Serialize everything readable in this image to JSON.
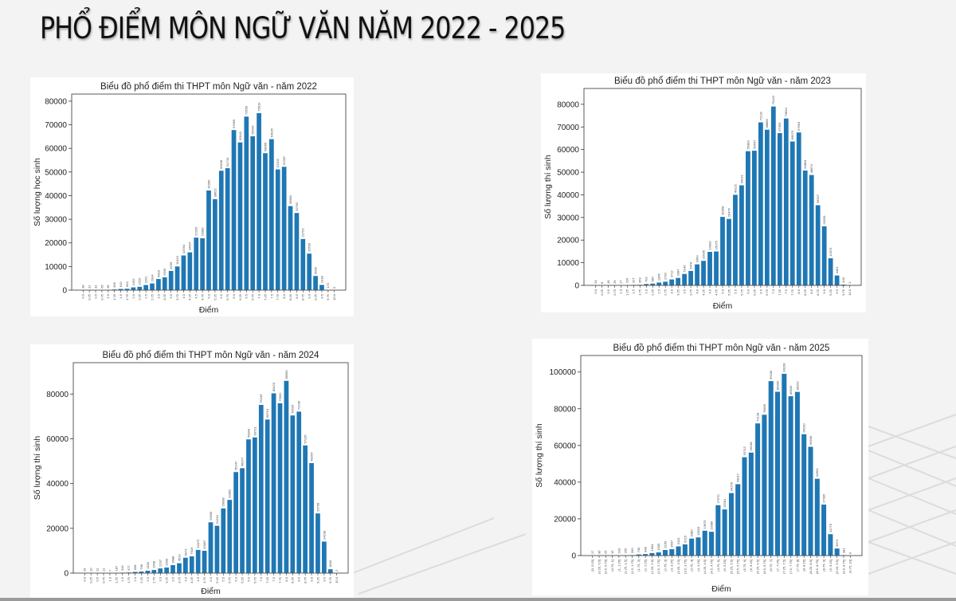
{
  "page": {
    "title": "PHỔ ĐIỂM MÔN NGỮ VĂN NĂM 2022 - 2025",
    "bar_color": "#1f77b4",
    "background": "#f3f3f3"
  },
  "chart_data": [
    {
      "type": "bar",
      "title": "Biểu đồ phổ điểm thi THPT môn Ngữ văn - năm 2022",
      "xlabel": "Điểm",
      "ylabel": "Số lượng học sinh",
      "ylim": [
        0,
        83000
      ],
      "yticks": [
        0,
        10000,
        20000,
        30000,
        40000,
        50000,
        60000,
        70000,
        80000
      ],
      "grid": false,
      "categories": [
        "0.0",
        "0.25",
        "0.5",
        "0.75",
        "1.0",
        "1.25",
        "1.5",
        "1.75",
        "2.0",
        "2.25",
        "2.5",
        "2.75",
        "3.0",
        "3.25",
        "3.5",
        "3.75",
        "4.0",
        "4.25",
        "4.5",
        "4.75",
        "5.0",
        "5.25",
        "5.5",
        "5.75",
        "6.0",
        "6.25",
        "6.5",
        "6.75",
        "7.0",
        "7.25",
        "7.5",
        "7.75",
        "8.0",
        "8.25",
        "8.5",
        "8.75",
        "9.0",
        "9.25",
        "9.5",
        "9.75",
        "10.0"
      ],
      "values": [
        38,
        12,
        31,
        65,
        28,
        395,
        610,
        694,
        1262,
        1520,
        2261,
        2934,
        4810,
        5539,
        8239,
        10119,
        14784,
        16097,
        22329,
        22089,
        42285,
        38622,
        50638,
        51713,
        67855,
        62643,
        73559,
        65243,
        75019,
        58066,
        64026,
        51202,
        52307,
        35680,
        32762,
        21753,
        15556,
        6095,
        2318,
        172,
        5
      ]
    },
    {
      "type": "bar",
      "title": "Biểu đồ phổ điểm thi THPT môn Ngữ văn - năm 2023",
      "xlabel": "Điểm",
      "ylabel": "Số lượng thí sinh",
      "ylim": [
        0,
        87000
      ],
      "yticks": [
        0,
        10000,
        20000,
        30000,
        40000,
        50000,
        60000,
        70000,
        80000
      ],
      "grid": false,
      "categories": [
        "0.0",
        "0.25",
        "0.5",
        "0.75",
        "1.0",
        "1.25",
        "1.5",
        "1.75",
        "2.0",
        "2.25",
        "2.5",
        "2.75",
        "3.0",
        "3.25",
        "3.5",
        "3.75",
        "4.0",
        "4.25",
        "4.5",
        "4.75",
        "5.0",
        "5.25",
        "5.5",
        "5.75",
        "6.0",
        "6.25",
        "6.5",
        "6.75",
        "7.0",
        "7.25",
        "7.5",
        "7.75",
        "8.0",
        "8.25",
        "8.5",
        "8.75",
        "9.0",
        "9.25",
        "9.5",
        "9.75",
        "10.0"
      ],
      "values": [
        24,
        8,
        18,
        29,
        17,
        226,
        327,
        359,
        702,
        887,
        1366,
        1720,
        2712,
        3387,
        5143,
        6478,
        9390,
        10935,
        14903,
        15075,
        30358,
        29475,
        40122,
        44321,
        59383,
        59597,
        72132,
        68886,
        79143,
        67363,
        73834,
        63679,
        67664,
        50864,
        48874,
        35527,
        26209,
        12073,
        4461,
        443,
        1
      ]
    },
    {
      "type": "bar",
      "title": "Biểu đồ phổ điểm thi THPT môn Ngữ văn - năm 2024",
      "xlabel": "Điểm",
      "ylabel": "Số lượng thí sinh",
      "ylim": [
        0,
        94000
      ],
      "yticks": [
        0,
        20000,
        40000,
        60000,
        80000
      ],
      "grid": false,
      "categories": [
        "0.0",
        "0.25",
        "0.5",
        "0.75",
        "1.0",
        "1.25",
        "1.5",
        "1.75",
        "2.0",
        "2.25",
        "2.5",
        "2.75",
        "3.0",
        "3.25",
        "3.5",
        "3.75",
        "4.0",
        "4.25",
        "4.5",
        "4.75",
        "5.0",
        "5.25",
        "5.5",
        "5.75",
        "6.0",
        "6.25",
        "6.5",
        "6.75",
        "7.0",
        "7.25",
        "7.5",
        "7.75",
        "8.0",
        "8.25",
        "8.5",
        "8.75",
        "9.0",
        "9.25",
        "9.5",
        "9.75",
        "10.0"
      ],
      "values": [
        29,
        10,
        11,
        11,
        7,
        187,
        319,
        377,
        658,
        798,
        1180,
        1508,
        2197,
        2600,
        3688,
        4510,
        6973,
        7619,
        10472,
        10067,
        22800,
        21234,
        29008,
        32802,
        45247,
        46977,
        59843,
        60721,
        75249,
        68719,
        80420,
        75962,
        85990,
        70526,
        72249,
        57136,
        49254,
        26758,
        14198,
        1843,
        2
      ]
    },
    {
      "type": "bar",
      "title": "Biểu đồ phổ điểm thi THPT môn Ngữ văn - năm 2025",
      "xlabel": "Điểm",
      "ylabel": "Số lượng thí sinh",
      "ylim": [
        0,
        109000
      ],
      "yticks": [
        0,
        20000,
        40000,
        60000,
        80000,
        100000
      ],
      "grid": false,
      "categories": [
        "[0, 0.25]",
        "(0.25, 0.5]",
        "(0.5, 0.75]",
        "(0.75, 1]",
        "(1, 1.25]",
        "(1.25, 1.5]",
        "(1.5, 1.75]",
        "(1.75, 2]",
        "(2, 2.25]",
        "(2.25, 2.5]",
        "(2.5, 2.75]",
        "(2.75, 3]",
        "(3, 3.25]",
        "(3.25, 3.5]",
        "(3.5, 3.75]",
        "(3.75, 4]",
        "(4, 4.25]",
        "(4.25, 4.5]",
        "(4.5, 4.75]",
        "(4.75, 5]",
        "(5, 5.25]",
        "(5.25, 5.5]",
        "(5.5, 5.75]",
        "(5.75, 6]",
        "(6, 6.25]",
        "(6.25, 6.5]",
        "(6.5, 6.75]",
        "(6.75, 7]",
        "(7, 7.25]",
        "(7.25, 7.5]",
        "(7.5, 7.75]",
        "(7.75, 8]",
        "(8, 8.25]",
        "(8.25, 8.5]",
        "(8.5, 8.75]",
        "(8.75, 9]",
        "(9, 9.25]",
        "(9.25, 9.5]",
        "(9.5, 9.75]",
        "(9.75, 10]"
      ],
      "values": [
        17,
        36,
        25,
        19,
        233,
        295,
        390,
        745,
        948,
        1504,
        1900,
        3160,
        3607,
        5110,
        6215,
        9380,
        10034,
        13675,
        13089,
        27570,
        25281,
        34178,
        39017,
        53712,
        56248,
        72128,
        76859,
        95180,
        89380,
        99168,
        86942,
        89292,
        66230,
        59398,
        41961,
        27905,
        11776,
        3974,
        381,
        0
      ]
    }
  ]
}
